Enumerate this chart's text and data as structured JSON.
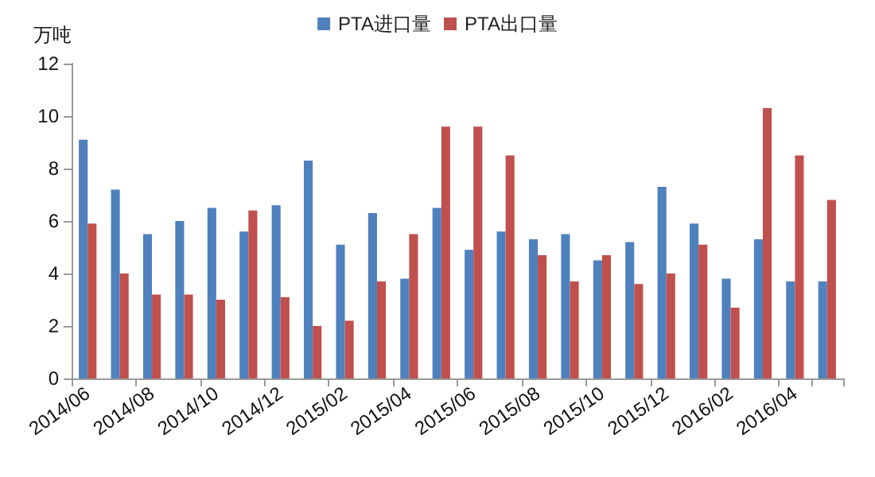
{
  "chart_data": {
    "type": "bar",
    "ylabel": "万吨",
    "categories": [
      "2014/06",
      null,
      "2014/08",
      null,
      "2014/10",
      null,
      "2014/12",
      null,
      "2015/02",
      null,
      "2015/04",
      null,
      "2015/06",
      null,
      "2015/08",
      null,
      "2015/10",
      null,
      "2015/12",
      null,
      "2016/02",
      null,
      "2016/04",
      null
    ],
    "series": [
      {
        "name": "PTA进口量",
        "color": "#4f81bd",
        "values": [
          9.1,
          7.2,
          5.5,
          6.0,
          6.5,
          5.6,
          6.6,
          8.3,
          5.1,
          6.3,
          3.8,
          6.5,
          4.9,
          5.6,
          5.3,
          5.5,
          4.5,
          5.2,
          7.3,
          5.9,
          3.8,
          5.3,
          3.7,
          3.7
        ]
      },
      {
        "name": "PTA出口量",
        "color": "#c0504d",
        "values": [
          5.9,
          4.0,
          3.2,
          3.2,
          3.0,
          6.4,
          3.1,
          2.0,
          2.2,
          3.7,
          5.5,
          9.6,
          9.6,
          8.5,
          4.7,
          3.7,
          4.7,
          3.6,
          4.0,
          5.1,
          2.7,
          10.3,
          8.5,
          6.8
        ]
      }
    ],
    "ylim": [
      0,
      12
    ],
    "yticks": [
      0,
      2,
      4,
      6,
      8,
      10,
      12
    ],
    "grid": false,
    "legend": "top"
  }
}
